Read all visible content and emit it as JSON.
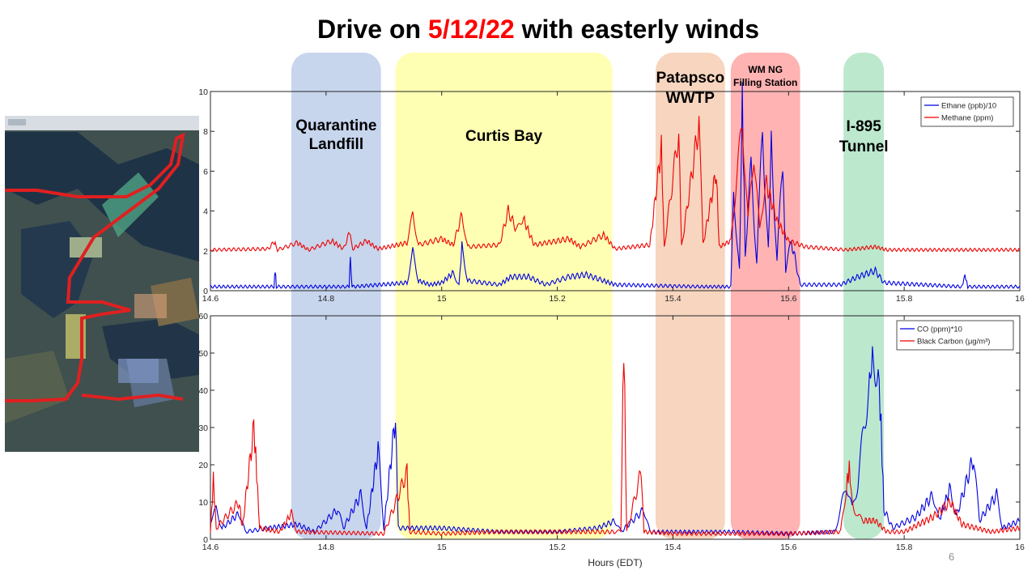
{
  "slide": {
    "title_pre": "Drive on ",
    "title_date": "5/12/22",
    "title_post": " with easterly winds",
    "page_number": "6"
  },
  "colors": {
    "title_accent": "#ff0000",
    "series_blue": "#0000e0",
    "series_red": "#ee0000"
  },
  "regions": [
    {
      "id": "quarantine",
      "lines": [
        "Quarantine",
        "Landfill"
      ],
      "x_start": 14.74,
      "x_end": 14.895,
      "color": "#b4c7e7"
    },
    {
      "id": "curtis",
      "lines": [
        "Curtis Bay"
      ],
      "x_start": 14.92,
      "x_end": 15.295,
      "color": "#ffff99"
    },
    {
      "id": "patapsco",
      "lines": [
        "Patapsco",
        "WWTP"
      ],
      "x_start": 15.37,
      "x_end": 15.49,
      "color": "#f4c7a9"
    },
    {
      "id": "wmng",
      "lines": [
        "WM NG",
        "Filling Station"
      ],
      "x_start": 15.5,
      "x_end": 15.62,
      "color": "#ff9a9a"
    },
    {
      "id": "i895",
      "lines": [
        "I-895",
        "Tunnel"
      ],
      "x_start": 15.695,
      "x_end": 15.765,
      "color": "#a6e0be"
    }
  ],
  "chart_data": [
    {
      "type": "line",
      "xlim": [
        14.6,
        16
      ],
      "ylim": [
        0,
        10
      ],
      "x_ticks": [
        "14.6",
        "14.8",
        "15",
        "15.2",
        "15.4",
        "15.6",
        "15.8",
        "16"
      ],
      "y_ticks": [
        "0",
        "2",
        "4",
        "6",
        "8",
        "10"
      ],
      "xlabel": "",
      "ylabel": "",
      "legend_position": "top-right",
      "series": [
        {
          "name": "Ethane (ppb)/10",
          "color": "#0000e0",
          "baseline": 0.2,
          "points": [
            [
              14.6,
              0.2
            ],
            [
              14.71,
              0.2
            ],
            [
              14.712,
              1.1
            ],
            [
              14.714,
              0.2
            ],
            [
              14.84,
              0.2
            ],
            [
              14.842,
              1.8
            ],
            [
              14.845,
              0.2
            ],
            [
              14.94,
              0.4
            ],
            [
              14.95,
              1.9
            ],
            [
              14.96,
              0.5
            ],
            [
              14.98,
              0.3
            ],
            [
              15.0,
              0.4
            ],
            [
              15.02,
              0.9
            ],
            [
              15.03,
              0.3
            ],
            [
              15.035,
              2.2
            ],
            [
              15.045,
              0.5
            ],
            [
              15.1,
              0.3
            ],
            [
              15.12,
              0.7
            ],
            [
              15.15,
              0.7
            ],
            [
              15.18,
              0.3
            ],
            [
              15.22,
              0.7
            ],
            [
              15.25,
              0.8
            ],
            [
              15.28,
              0.5
            ],
            [
              15.3,
              0.3
            ],
            [
              15.45,
              0.2
            ],
            [
              15.5,
              0.2
            ],
            [
              15.505,
              5.0
            ],
            [
              15.515,
              1.0
            ],
            [
              15.52,
              9.8
            ],
            [
              15.525,
              2.0
            ],
            [
              15.535,
              6.0
            ],
            [
              15.545,
              1.5
            ],
            [
              15.555,
              8.0
            ],
            [
              15.565,
              2.0
            ],
            [
              15.57,
              7.5
            ],
            [
              15.58,
              1.5
            ],
            [
              15.59,
              6.5
            ],
            [
              15.595,
              1.0
            ],
            [
              15.605,
              2.5
            ],
            [
              15.62,
              0.3
            ],
            [
              15.69,
              0.3
            ],
            [
              15.72,
              0.7
            ],
            [
              15.75,
              1.0
            ],
            [
              15.765,
              0.4
            ],
            [
              15.9,
              0.2
            ],
            [
              15.905,
              0.8
            ],
            [
              15.91,
              0.2
            ],
            [
              16.0,
              0.2
            ]
          ]
        },
        {
          "name": "Methane (ppm)",
          "color": "#ee0000",
          "baseline": 2.05,
          "points": [
            [
              14.6,
              2.05
            ],
            [
              14.7,
              2.1
            ],
            [
              14.712,
              2.5
            ],
            [
              14.716,
              2.05
            ],
            [
              14.75,
              2.4
            ],
            [
              14.77,
              2.05
            ],
            [
              14.81,
              2.5
            ],
            [
              14.83,
              2.1
            ],
            [
              14.842,
              3.0
            ],
            [
              14.846,
              2.1
            ],
            [
              14.87,
              2.5
            ],
            [
              14.89,
              2.1
            ],
            [
              14.94,
              2.4
            ],
            [
              14.95,
              3.8
            ],
            [
              14.96,
              2.3
            ],
            [
              15.0,
              2.6
            ],
            [
              15.02,
              2.3
            ],
            [
              15.035,
              3.8
            ],
            [
              15.045,
              2.2
            ],
            [
              15.1,
              2.3
            ],
            [
              15.115,
              4.0
            ],
            [
              15.13,
              3.0
            ],
            [
              15.14,
              3.7
            ],
            [
              15.16,
              2.3
            ],
            [
              15.22,
              2.6
            ],
            [
              15.24,
              2.2
            ],
            [
              15.28,
              2.8
            ],
            [
              15.3,
              2.1
            ],
            [
              15.36,
              2.3
            ],
            [
              15.38,
              7.2
            ],
            [
              15.385,
              2.2
            ],
            [
              15.41,
              8.0
            ],
            [
              15.415,
              2.2
            ],
            [
              15.445,
              8.4
            ],
            [
              15.452,
              2.3
            ],
            [
              15.475,
              6.0
            ],
            [
              15.48,
              2.2
            ],
            [
              15.5,
              2.5
            ],
            [
              15.51,
              5.5
            ],
            [
              15.52,
              8.5
            ],
            [
              15.53,
              3.5
            ],
            [
              15.54,
              7.0
            ],
            [
              15.55,
              3.0
            ],
            [
              15.56,
              5.5
            ],
            [
              15.58,
              3.5
            ],
            [
              15.6,
              2.5
            ],
            [
              15.63,
              2.2
            ],
            [
              15.7,
              2.05
            ],
            [
              15.75,
              2.2
            ],
            [
              15.77,
              2.05
            ],
            [
              16.0,
              2.05
            ]
          ]
        }
      ]
    },
    {
      "type": "line",
      "xlim": [
        14.6,
        16
      ],
      "ylim": [
        0,
        60
      ],
      "x_ticks": [
        "14.6",
        "14.8",
        "15",
        "15.2",
        "15.4",
        "15.6",
        "15.8",
        "16"
      ],
      "y_ticks": [
        "0",
        "10",
        "20",
        "30",
        "40",
        "50",
        "60"
      ],
      "xlabel": "Hours (EDT)",
      "ylabel": "",
      "legend_position": "top-right",
      "series": [
        {
          "name": "CO (ppm)*10",
          "color": "#0000e0",
          "baseline": 2.0,
          "points": [
            [
              14.6,
              5
            ],
            [
              14.61,
              8
            ],
            [
              14.62,
              3
            ],
            [
              14.65,
              7
            ],
            [
              14.66,
              2
            ],
            [
              14.7,
              3
            ],
            [
              14.75,
              4
            ],
            [
              14.78,
              2
            ],
            [
              14.82,
              8
            ],
            [
              14.83,
              3
            ],
            [
              14.86,
              12
            ],
            [
              14.87,
              3
            ],
            [
              14.89,
              24
            ],
            [
              14.9,
              3
            ],
            [
              14.92,
              33
            ],
            [
              14.925,
              3
            ],
            [
              15.0,
              3
            ],
            [
              15.1,
              2
            ],
            [
              15.2,
              2
            ],
            [
              15.27,
              3
            ],
            [
              15.3,
              5
            ],
            [
              15.31,
              2
            ],
            [
              15.35,
              8
            ],
            [
              15.36,
              2
            ],
            [
              15.5,
              2
            ],
            [
              15.6,
              1.5
            ],
            [
              15.68,
              2
            ],
            [
              15.69,
              8
            ],
            [
              15.7,
              15
            ],
            [
              15.71,
              8
            ],
            [
              15.72,
              15
            ],
            [
              15.73,
              30
            ],
            [
              15.74,
              42
            ],
            [
              15.745,
              48
            ],
            [
              15.755,
              46
            ],
            [
              15.76,
              30
            ],
            [
              15.765,
              8
            ],
            [
              15.78,
              3
            ],
            [
              15.82,
              6
            ],
            [
              15.85,
              12
            ],
            [
              15.86,
              5
            ],
            [
              15.88,
              14
            ],
            [
              15.89,
              6
            ],
            [
              15.92,
              22
            ],
            [
              15.93,
              5
            ],
            [
              15.96,
              12
            ],
            [
              15.97,
              3
            ],
            [
              16.0,
              5
            ]
          ]
        },
        {
          "name": "Black Carbon (μg/m³)",
          "color": "#ee0000",
          "baseline": 1.5,
          "points": [
            [
              14.6,
              2
            ],
            [
              14.605,
              16
            ],
            [
              14.61,
              3
            ],
            [
              14.65,
              10
            ],
            [
              14.655,
              3
            ],
            [
              14.675,
              30
            ],
            [
              14.68,
              18
            ],
            [
              14.685,
              3
            ],
            [
              14.72,
              2
            ],
            [
              14.74,
              7
            ],
            [
              14.75,
              2
            ],
            [
              14.9,
              1.5
            ],
            [
              14.94,
              18
            ],
            [
              14.945,
              2
            ],
            [
              15.0,
              1.5
            ],
            [
              15.1,
              2
            ],
            [
              15.2,
              2
            ],
            [
              15.3,
              2
            ],
            [
              15.31,
              2
            ],
            [
              15.315,
              54
            ],
            [
              15.32,
              2
            ],
            [
              15.345,
              18
            ],
            [
              15.35,
              2
            ],
            [
              15.4,
              1.5
            ],
            [
              15.5,
              1.5
            ],
            [
              15.6,
              1.5
            ],
            [
              15.69,
              2
            ],
            [
              15.7,
              14
            ],
            [
              15.705,
              19
            ],
            [
              15.71,
              10
            ],
            [
              15.72,
              6
            ],
            [
              15.73,
              5
            ],
            [
              15.75,
              5
            ],
            [
              15.77,
              2
            ],
            [
              15.8,
              2
            ],
            [
              15.85,
              6
            ],
            [
              15.88,
              10
            ],
            [
              15.9,
              4
            ],
            [
              15.95,
              2
            ],
            [
              16.0,
              3
            ]
          ]
        }
      ]
    }
  ]
}
